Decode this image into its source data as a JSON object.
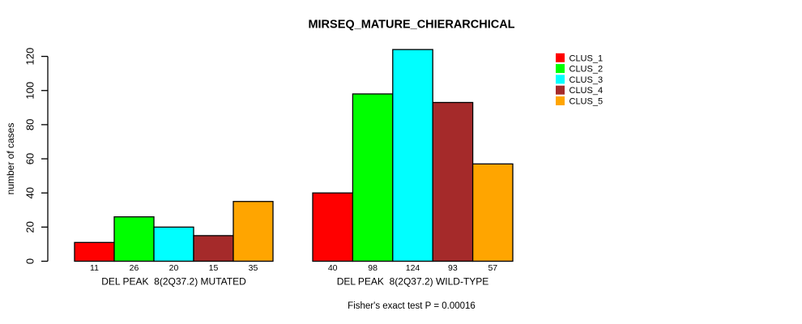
{
  "chart_data": {
    "type": "bar",
    "title": "MIRSEQ_MATURE_CHIERARCHICAL",
    "ylabel": "number of cases",
    "xlabel": "",
    "ylim": [
      0,
      120
    ],
    "yticks": [
      0,
      20,
      40,
      60,
      80,
      100,
      120
    ],
    "grid": false,
    "legend_position": "topright",
    "categories": [
      "DEL PEAK  8(2Q37.2) MUTATED",
      "DEL PEAK  8(2Q37.2) WILD-TYPE"
    ],
    "series": [
      {
        "name": "CLUS_1",
        "color": "#FF0000",
        "values": [
          11,
          40
        ]
      },
      {
        "name": "CLUS_2",
        "color": "#00FF00",
        "values": [
          26,
          98
        ]
      },
      {
        "name": "CLUS_3",
        "color": "#00FFFF",
        "values": [
          20,
          124
        ]
      },
      {
        "name": "CLUS_4",
        "color": "#A52A2A",
        "values": [
          15,
          93
        ]
      },
      {
        "name": "CLUS_5",
        "color": "#FFA500",
        "values": [
          35,
          57
        ]
      }
    ],
    "value_labels_shown": true,
    "bar_border_color": "#000000",
    "annotation": "Fisher's exact test P = 0.00016"
  }
}
